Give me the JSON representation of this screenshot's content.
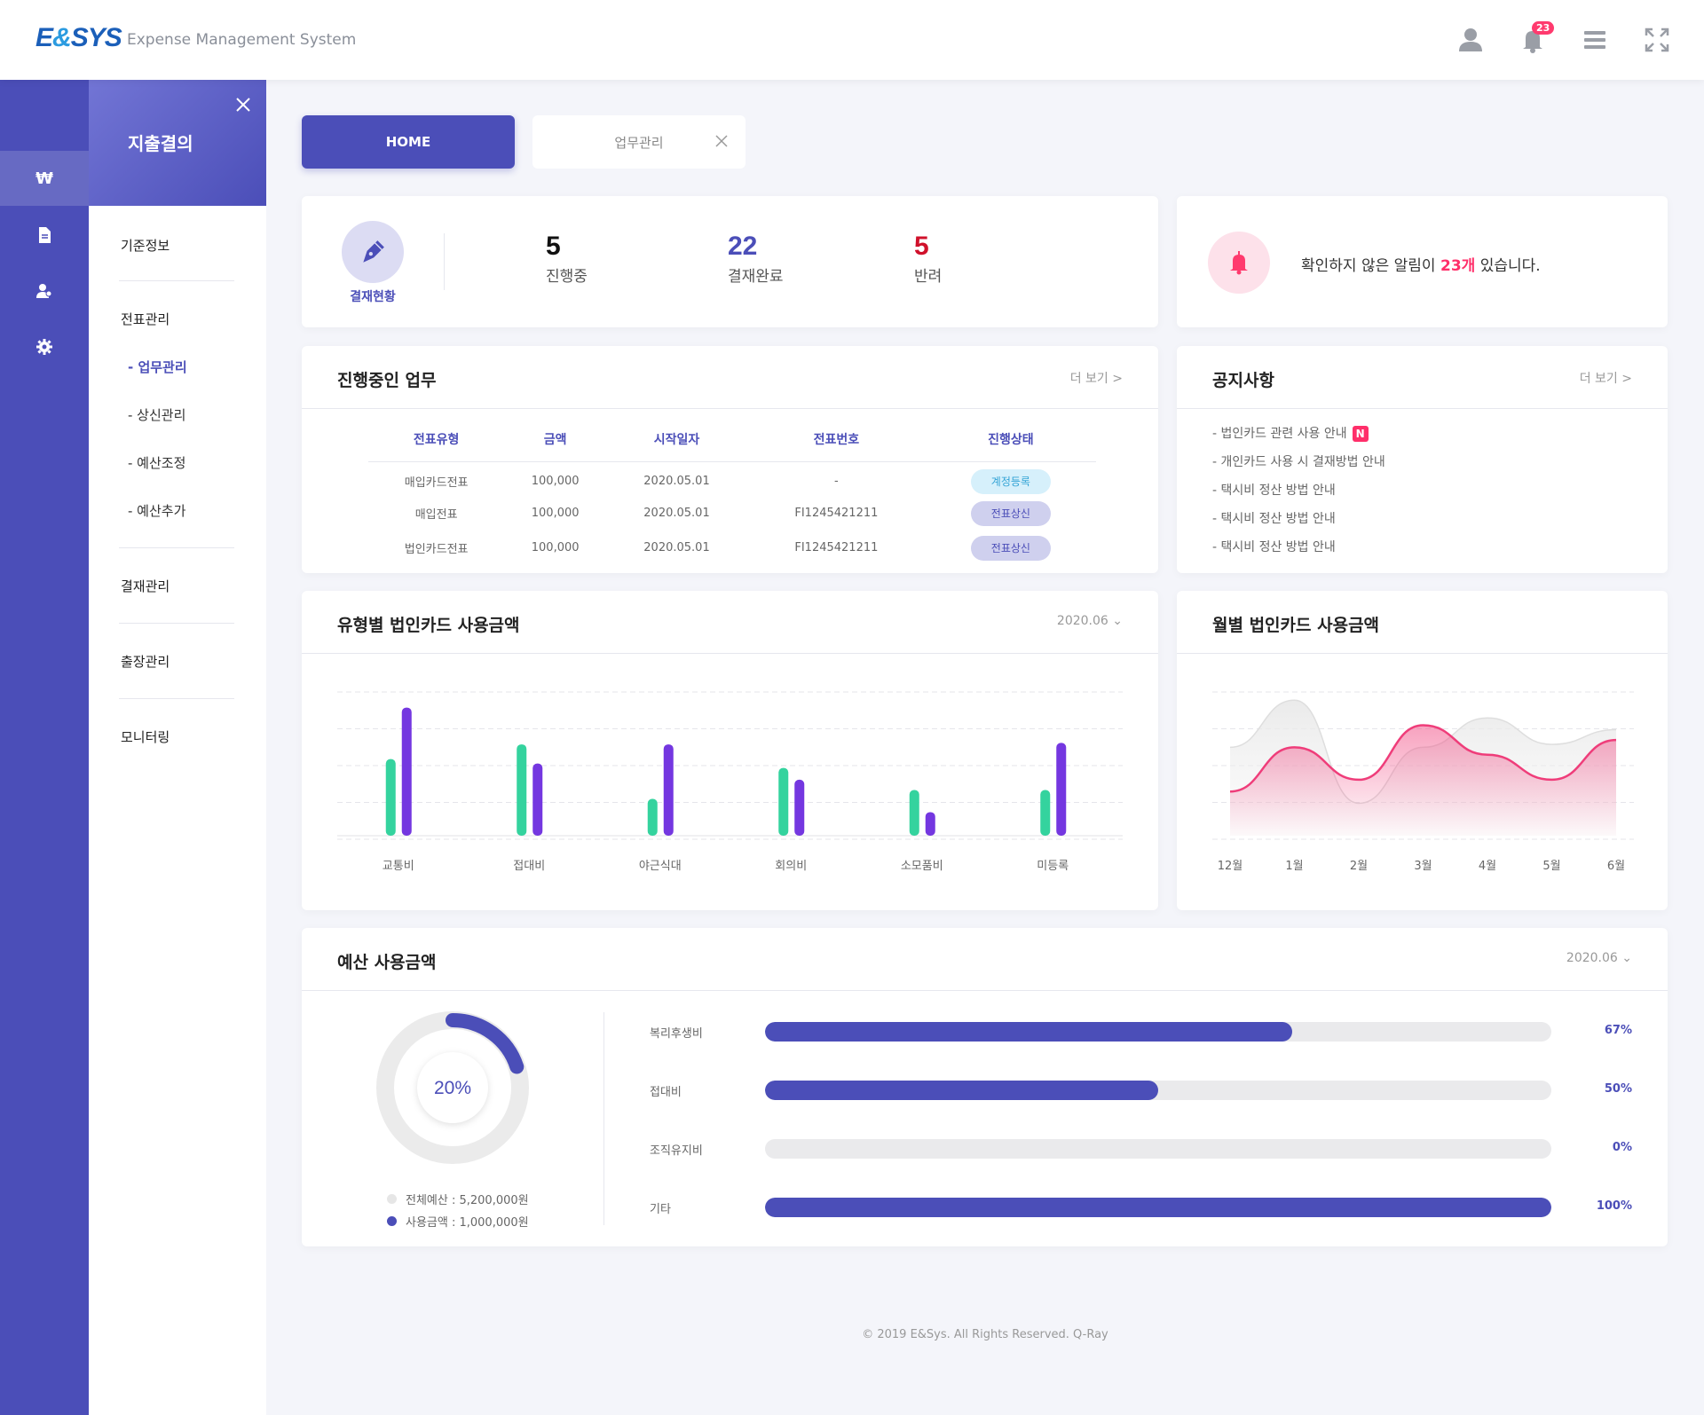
{
  "header": {
    "logo_main": "E",
    "logo_amp": "&",
    "logo_rest": "SYS",
    "subtitle": "Expense Management System",
    "notification_count": "23"
  },
  "submenu": {
    "title": "지출결의",
    "groups": [
      "기준정보",
      "전표관리",
      "결재관리",
      "출장관리",
      "모니터링"
    ],
    "sub_items": [
      "- 업무관리",
      "- 상신관리",
      "- 예산조정",
      "- 예산추가"
    ]
  },
  "tabs": {
    "home": "HOME",
    "work": "업무관리"
  },
  "approval": {
    "label": "결재현황",
    "stats": [
      {
        "num": "5",
        "label": "진행중",
        "color": "#111111"
      },
      {
        "num": "22",
        "label": "결재완료",
        "color": "#4b4eb8"
      },
      {
        "num": "5",
        "label": "반려",
        "color": "#d0112b"
      }
    ]
  },
  "alert": {
    "prefix": "확인하지 않은 알림이 ",
    "count": "23개",
    "suffix": " 있습니다."
  },
  "tasks": {
    "title": "진행중인 업무",
    "more": "더 보기 >",
    "columns": [
      "전표유형",
      "금액",
      "시작일자",
      "전표번호",
      "진행상태"
    ],
    "rows": [
      {
        "type": "매입카드전표",
        "amount": "100,000",
        "date": "2020.05.01",
        "no": "-",
        "status": "계정등록"
      },
      {
        "type": "매입전표",
        "amount": "100,000",
        "date": "2020.05.01",
        "no": "FI1245421211",
        "status": "전표상신"
      },
      {
        "type": "법인카드전표",
        "amount": "100,000",
        "date": "2020.05.01",
        "no": "FI1245421211",
        "status": "전표상신"
      }
    ]
  },
  "notices": {
    "title": "공지사항",
    "more": "더 보기 >",
    "items": [
      "- 법인카드 관련 사용 안내",
      "- 개인카드 사용 시 결재방법 안내",
      "- 택시비 정산 방법 안내",
      "- 택시비 정산 방법 안내",
      "- 택시비 정산 방법 안내"
    ],
    "new_badge": "N"
  },
  "type_chart": {
    "title": "유형별 법인카드 사용금액",
    "period": "2020.06"
  },
  "monthly_chart": {
    "title": "월별 법인카드 사용금액"
  },
  "budget": {
    "title": "예산 사용금액",
    "period": "2020.06",
    "donut_pct": "20%",
    "donut_value": 0.2,
    "legend": [
      "전체예산 : 5,200,000원",
      "사용금액 : 1,000,000원"
    ],
    "bars": [
      {
        "label": "복리후생비",
        "pct": "67%",
        "value": 0.67
      },
      {
        "label": "접대비",
        "pct": "50%",
        "value": 0.5
      },
      {
        "label": "조직유지비",
        "pct": "0%",
        "value": 0
      },
      {
        "label": "기타",
        "pct": "100%",
        "value": 1
      }
    ]
  },
  "chart_data": [
    {
      "type": "bar",
      "title": "유형별 법인카드 사용금액",
      "categories": [
        "교통비",
        "접대비",
        "야근식대",
        "회의비",
        "소모품비",
        "미등록"
      ],
      "series": [
        {
          "values": [
            52,
            62,
            25,
            46,
            31,
            31
          ],
          "color": "#34d39e"
        },
        {
          "values": [
            87,
            49,
            62,
            38,
            16,
            63
          ],
          "color": "#7437e0"
        }
      ],
      "ylim": [
        0,
        100
      ],
      "grid": true
    },
    {
      "type": "area",
      "title": "월별 법인카드 사용금액",
      "categories": [
        "12월",
        "1월",
        "2월",
        "3월",
        "4월",
        "5월",
        "6월"
      ],
      "series": [
        {
          "values": [
            60,
            92,
            22,
            60,
            80,
            62,
            72
          ],
          "color": "#e6e6e6"
        },
        {
          "values": [
            30,
            60,
            38,
            75,
            55,
            38,
            65
          ],
          "color": "#ef3d7a"
        }
      ],
      "ylim": [
        0,
        100
      ],
      "grid": true
    }
  ],
  "footer": "© 2019 E&Sys. All Rights Reserved. Q-Ray"
}
